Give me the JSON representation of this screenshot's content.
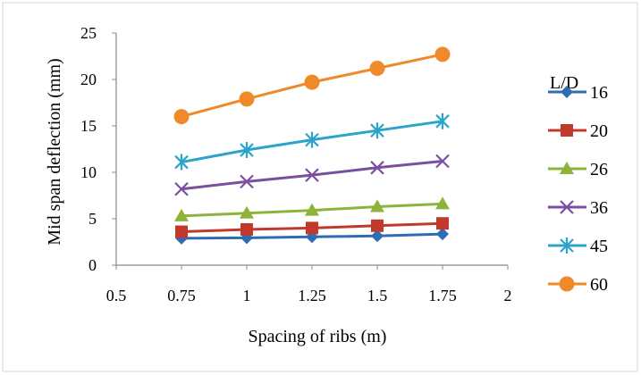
{
  "chart_data": {
    "type": "line",
    "xlabel": "Spacing of ribs (m)",
    "ylabel": "Mid span deflection (mm)",
    "legend_title": "L/D",
    "legend_position": "right",
    "grid": false,
    "xlim": [
      0.5,
      2
    ],
    "ylim": [
      0,
      25
    ],
    "x_ticks": [
      "0.5",
      "0.75",
      "1",
      "1.25",
      "1.5",
      "1.75",
      "2"
    ],
    "y_ticks": [
      "0",
      "5",
      "10",
      "15",
      "20",
      "25"
    ],
    "x": [
      0.75,
      1,
      1.25,
      1.5,
      1.75
    ],
    "series": [
      {
        "name": "16",
        "color": "#2e6db5",
        "marker": "diamond",
        "values": [
          2.9,
          2.95,
          3.05,
          3.15,
          3.35
        ]
      },
      {
        "name": "20",
        "color": "#c0392b",
        "marker": "square",
        "values": [
          3.6,
          3.85,
          4.0,
          4.25,
          4.5
        ]
      },
      {
        "name": "26",
        "color": "#8db33a",
        "marker": "triangle",
        "values": [
          5.3,
          5.6,
          5.9,
          6.3,
          6.6
        ]
      },
      {
        "name": "36",
        "color": "#7b4fa0",
        "marker": "x",
        "values": [
          8.2,
          9.0,
          9.7,
          10.5,
          11.2
        ]
      },
      {
        "name": "45",
        "color": "#2aa4c9",
        "marker": "asterisk",
        "values": [
          11.1,
          12.4,
          13.5,
          14.5,
          15.5
        ]
      },
      {
        "name": "60",
        "color": "#ef8a2a",
        "marker": "circle",
        "values": [
          16.0,
          17.9,
          19.7,
          21.2,
          22.7
        ]
      }
    ]
  }
}
